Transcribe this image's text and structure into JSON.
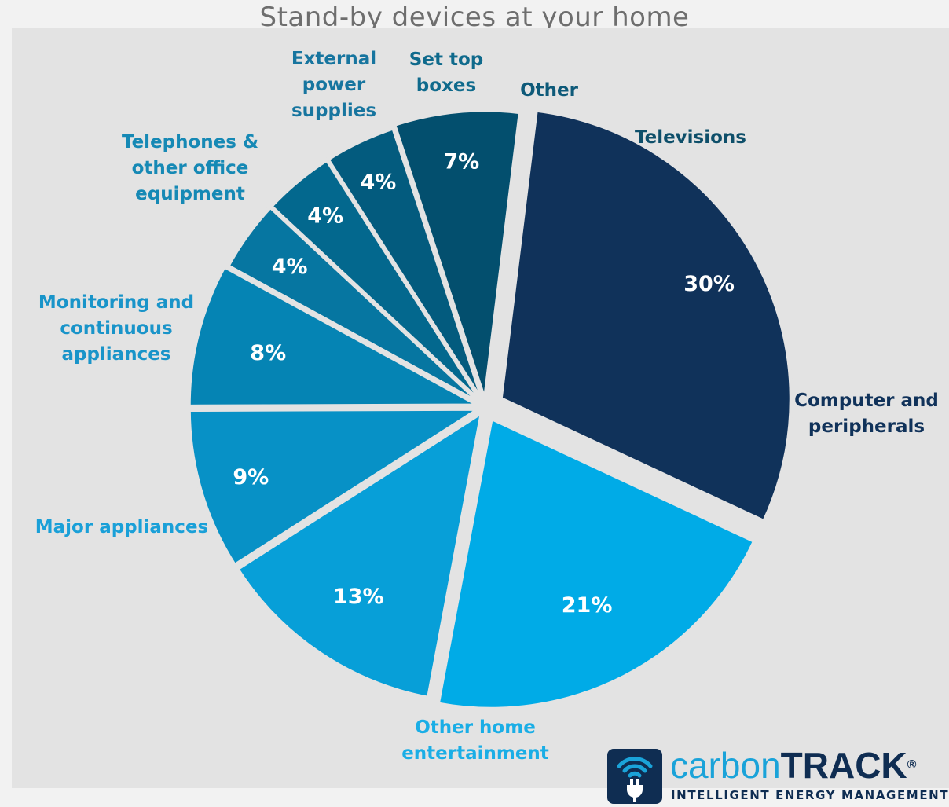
{
  "title": "Stand-by devices at your home",
  "chart_data": {
    "type": "pie",
    "title": "Stand-by devices at your home",
    "slices": [
      {
        "label": [
          "Computer and",
          "peripherals"
        ],
        "value": 30,
        "value_label": "30%",
        "color": "#10325a",
        "label_color": "#10325a"
      },
      {
        "label": [
          "Other home",
          "entertainment"
        ],
        "value": 21,
        "value_label": "21%",
        "color": "#00abe7",
        "label_color": "#1aaee6"
      },
      {
        "label": [
          "Major appliances"
        ],
        "value": 13,
        "value_label": "13%",
        "color": "#079fd8",
        "label_color": "#1aa0d8"
      },
      {
        "label": [
          "Monitoring and",
          "continuous",
          "appliances"
        ],
        "value": 9,
        "value_label": "9%",
        "color": "#0791c6",
        "label_color": "#1994c9"
      },
      {
        "label": [
          "Telephones &",
          "other office",
          "equipment"
        ],
        "value": 8,
        "value_label": "8%",
        "color": "#0584b4",
        "label_color": "#1689b5"
      },
      {
        "label": [
          "External",
          "power",
          "supplies"
        ],
        "value": 4,
        "value_label": "4%",
        "color": "#0676a1",
        "label_color": "#17759f"
      },
      {
        "label": [
          "Set top",
          "boxes"
        ],
        "value": 4,
        "value_label": "4%",
        "color": "#03688e",
        "label_color": "#0f6a8c"
      },
      {
        "label": [
          "Other"
        ],
        "value": 4,
        "value_label": "4%",
        "color": "#035b7e",
        "label_color": "#0e5a79"
      },
      {
        "label": [
          "Televisions"
        ],
        "value": 7,
        "value_label": "7%",
        "color": "#034f6e",
        "label_color": "#0e4f6a"
      }
    ]
  },
  "logo": {
    "word_light": "carbon",
    "word_bold": "TRACK",
    "registered": "®",
    "tagline": "INTELLIGENT ENERGY MANAGEMENT"
  }
}
